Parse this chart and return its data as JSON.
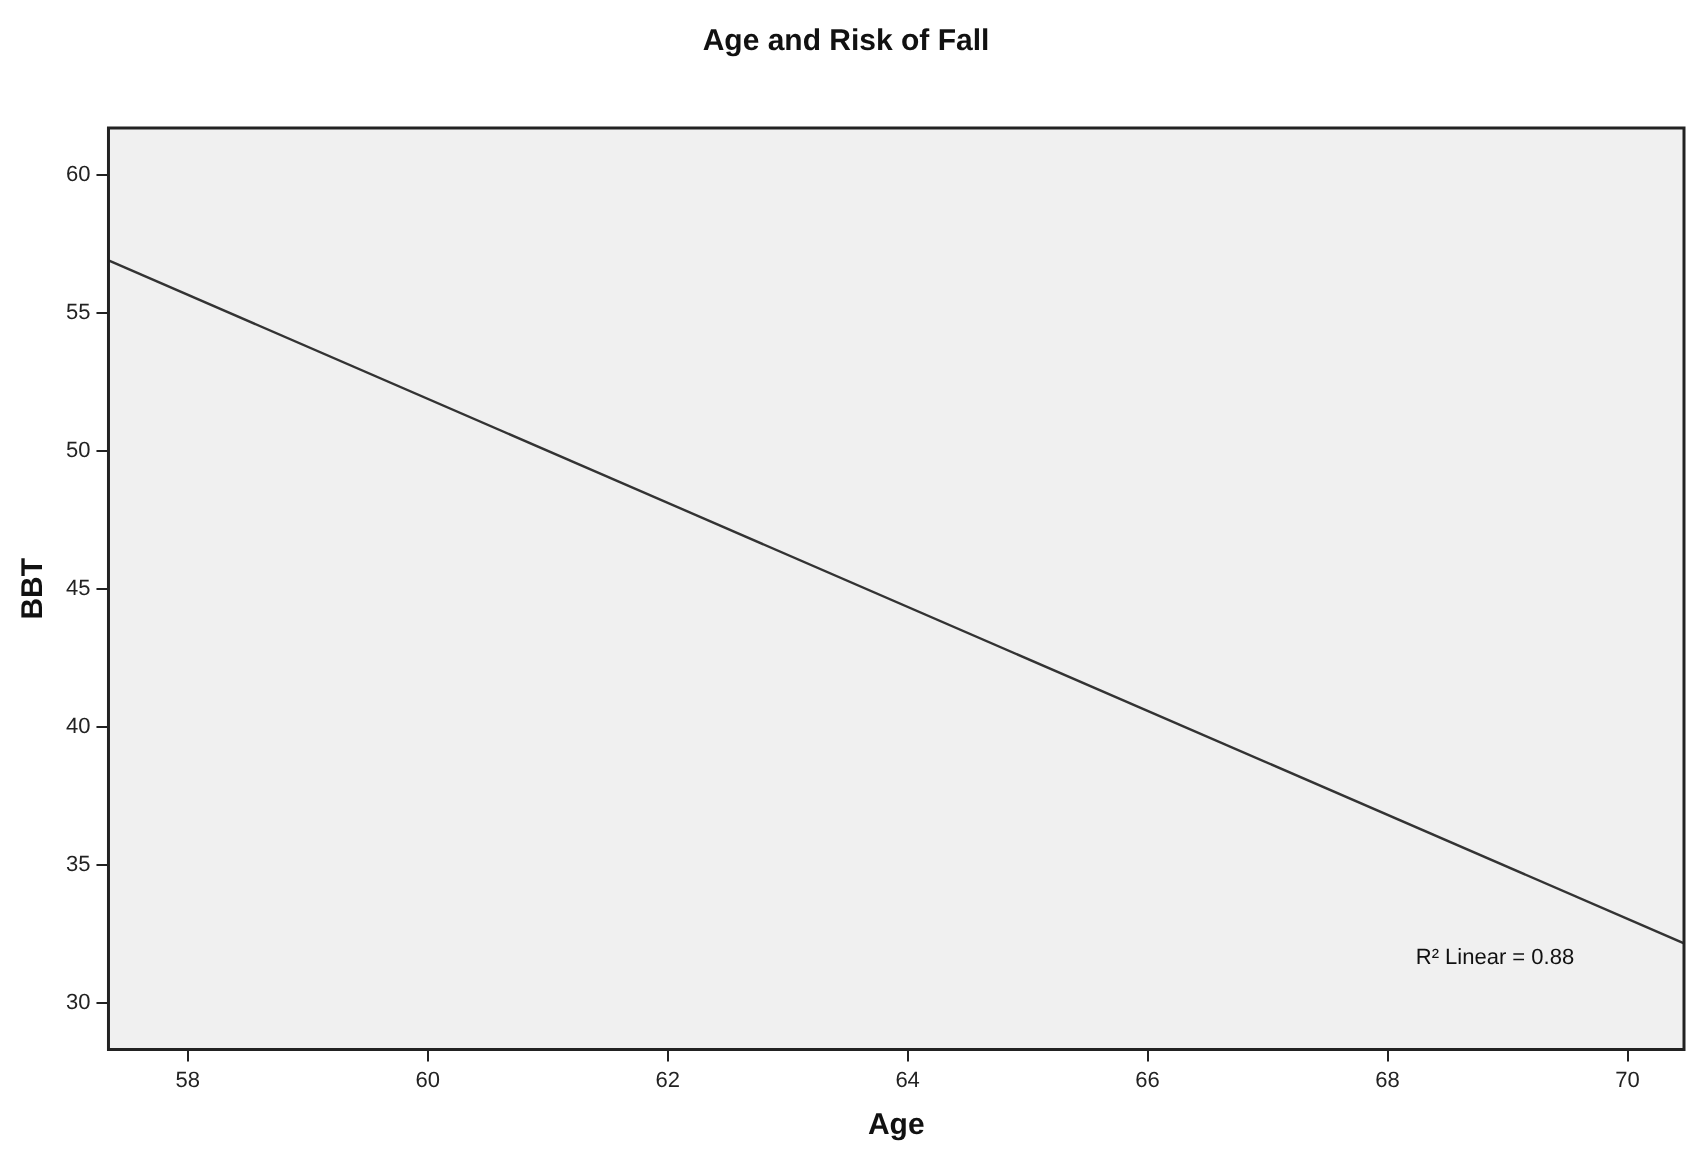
{
  "chart_data": {
    "type": "line",
    "title": "Age and Risk of Fall",
    "xlabel": "Age",
    "ylabel": "BBT",
    "series": [
      {
        "color": "#333333",
        "x": [
          57.34,
          70.47
        ],
        "values": [
          56.9,
          32.15
        ]
      }
    ],
    "xlim": [
      57.34,
      70.47
    ],
    "xticks": [
      58,
      60,
      62,
      64,
      66,
      68,
      70
    ],
    "ylim": [
      28.3,
      61.7
    ],
    "yticks": [
      30,
      35,
      40,
      45,
      50,
      55,
      60
    ],
    "grid": false,
    "legend": false,
    "marker": "none",
    "line_style": "solid",
    "annotations": [
      "R² Linear = 0.88"
    ]
  }
}
